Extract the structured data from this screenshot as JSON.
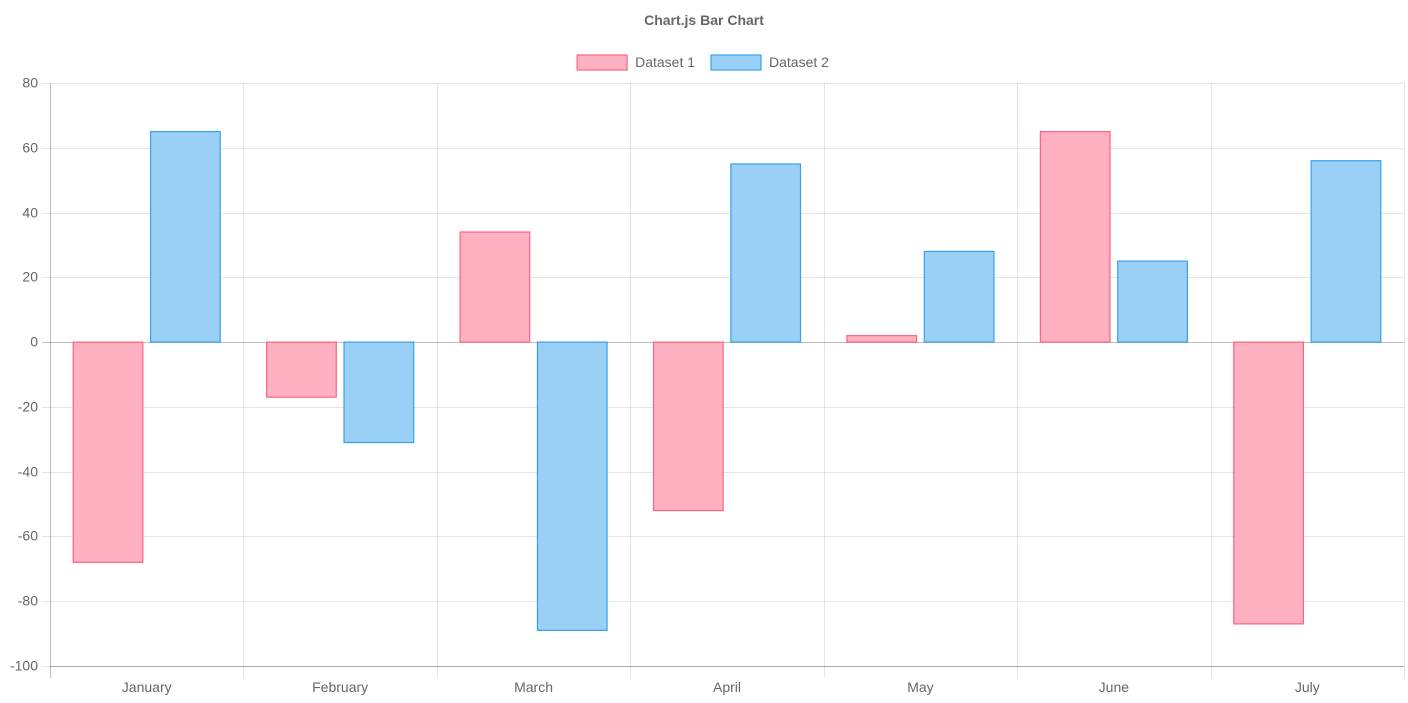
{
  "chart_data": {
    "type": "bar",
    "title": "Chart.js Bar Chart",
    "categories": [
      "January",
      "February",
      "March",
      "April",
      "May",
      "June",
      "July"
    ],
    "series": [
      {
        "name": "Dataset 1",
        "values": [
          -68,
          -17,
          34,
          -52,
          2,
          65,
          -87
        ],
        "fill": "#ffb0c1",
        "stroke": "#ff6384"
      },
      {
        "name": "Dataset 2",
        "values": [
          65,
          -31,
          -89,
          55,
          28,
          25,
          56
        ],
        "fill": "#9ad0f5",
        "stroke": "#36a2eb"
      }
    ],
    "ylim": [
      -100,
      80
    ],
    "yticks": [
      80,
      60,
      40,
      20,
      0,
      -20,
      -40,
      -60,
      -80,
      -100
    ],
    "xlabel": "",
    "ylabel": "",
    "grid": true,
    "legend_position": "top"
  }
}
